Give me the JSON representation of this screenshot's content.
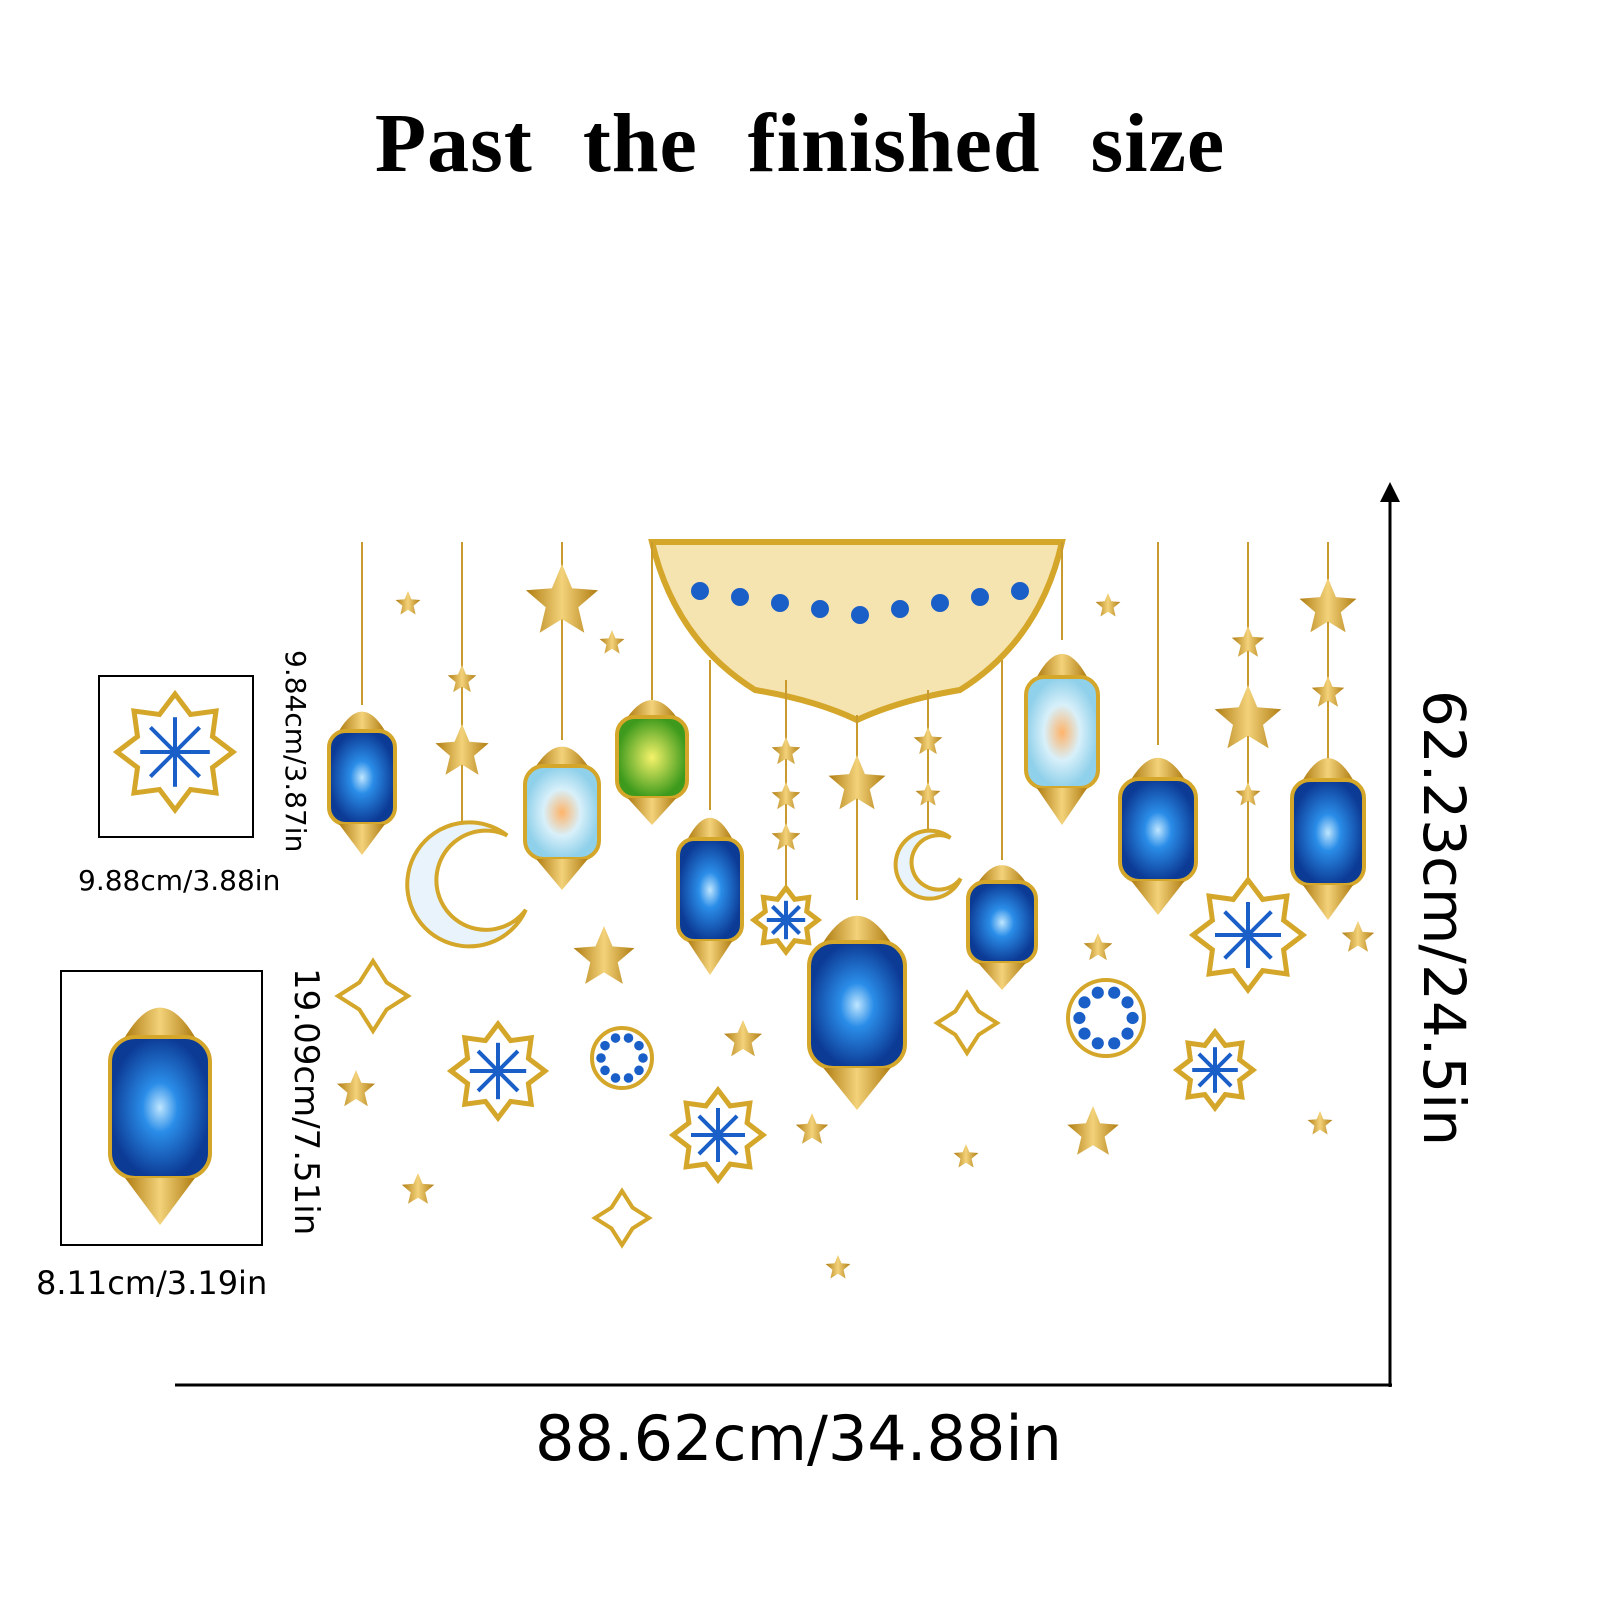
{
  "title": "Past the finished size",
  "colors": {
    "gold": "#d4a62a",
    "blue": "#1a5fc8",
    "line": "#000000"
  },
  "overall": {
    "width_label": "88.62cm/34.88in",
    "height_label": "62.23cm/24.5in"
  },
  "details": [
    {
      "item": "star-snowflake",
      "height_label": "9.84cm/3.87in",
      "width_label": "9.88cm/3.88in"
    },
    {
      "item": "lantern",
      "height_label": "19.09cm/7.51in",
      "width_label": "8.11cm/3.19in"
    }
  ]
}
